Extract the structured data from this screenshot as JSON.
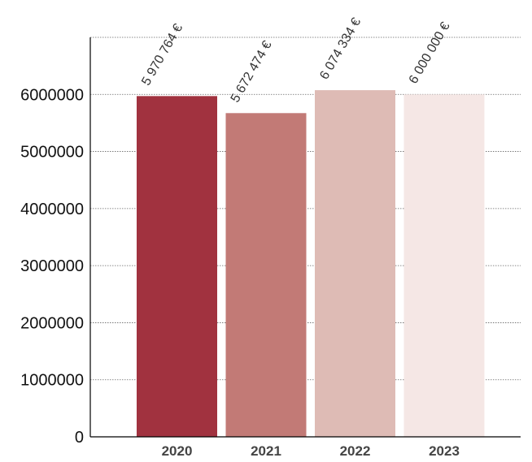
{
  "chart_data": {
    "type": "bar",
    "categories": [
      "2020",
      "2021",
      "2022",
      "2023"
    ],
    "values": [
      5970764,
      5672474,
      6074334,
      6000000
    ],
    "data_labels": [
      "5 970 764 €",
      "5 672 474 €",
      "6 074 334 €",
      "6 000 000 €"
    ],
    "bar_colors": [
      "#a1323f",
      "#c27a76",
      "#debbb5",
      "#f5e7e5"
    ],
    "y_ticks": [
      "0",
      "1000000",
      "2000000",
      "3000000",
      "4000000",
      "5000000",
      "6000000"
    ],
    "ylim": [
      0,
      7000000
    ],
    "grid": true,
    "title": "",
    "xlabel": "",
    "ylabel": ""
  }
}
